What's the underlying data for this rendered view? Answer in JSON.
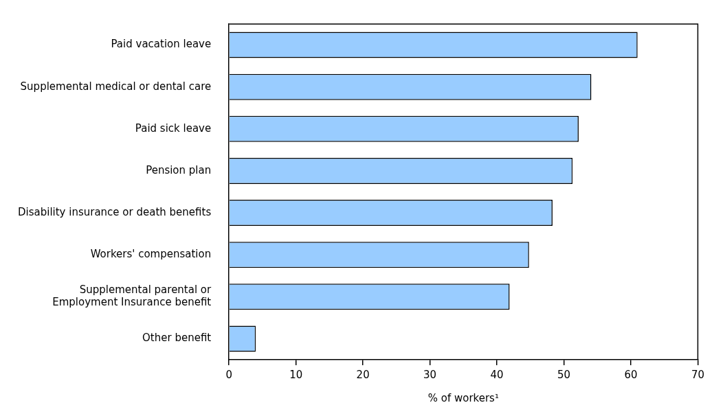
{
  "chart_data": {
    "type": "bar",
    "orientation": "horizontal",
    "xlabel": "% of workers¹",
    "categories": [
      "Paid vacation leave",
      "Supplemental medical or dental care",
      "Paid sick leave",
      "Pension plan",
      "Disability insurance or death benefits",
      "Workers' compensation",
      "Supplemental parental or\nEmployment Insurance benefit",
      "Other benefit"
    ],
    "values": [
      61.0,
      54.1,
      52.2,
      51.3,
      48.3,
      44.8,
      41.9,
      4.0
    ],
    "color": "#99ccff",
    "xlim": [
      0,
      70
    ],
    "xticks": [
      0,
      10,
      20,
      30,
      40,
      50,
      60,
      70
    ],
    "grid": false,
    "legend": false
  }
}
